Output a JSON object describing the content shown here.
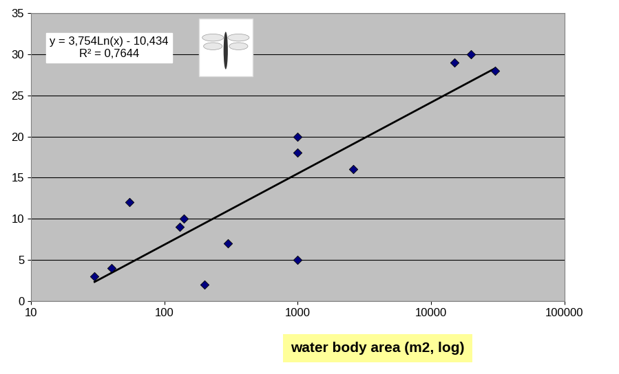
{
  "chart_data": {
    "type": "scatter",
    "x_label": "water body area (m2, log)",
    "annotations": [
      "y = 3,754Ln(x) - 10,434",
      "R² = 0,7644"
    ],
    "log": "x",
    "x": [
      30,
      40,
      55,
      130,
      140,
      200,
      300,
      1000,
      1000,
      1000,
      2600,
      15000,
      20000,
      30000
    ],
    "values": [
      3,
      4,
      12,
      9,
      10,
      2,
      7,
      20,
      18,
      5,
      16,
      29,
      30,
      28
    ],
    "color": "#000080",
    "marker": "diamond",
    "trendline": {
      "x": [
        30,
        30000
      ],
      "values": [
        2.33,
        28.27
      ],
      "color": "#000000",
      "line_style": "solid"
    },
    "xlim": [
      10,
      100000
    ],
    "xticks": [
      10,
      100,
      1000,
      10000,
      100000
    ],
    "ylim": [
      0,
      35
    ],
    "yticks": [
      0,
      5,
      10,
      15,
      20,
      25,
      30,
      35
    ],
    "grid": "y"
  }
}
